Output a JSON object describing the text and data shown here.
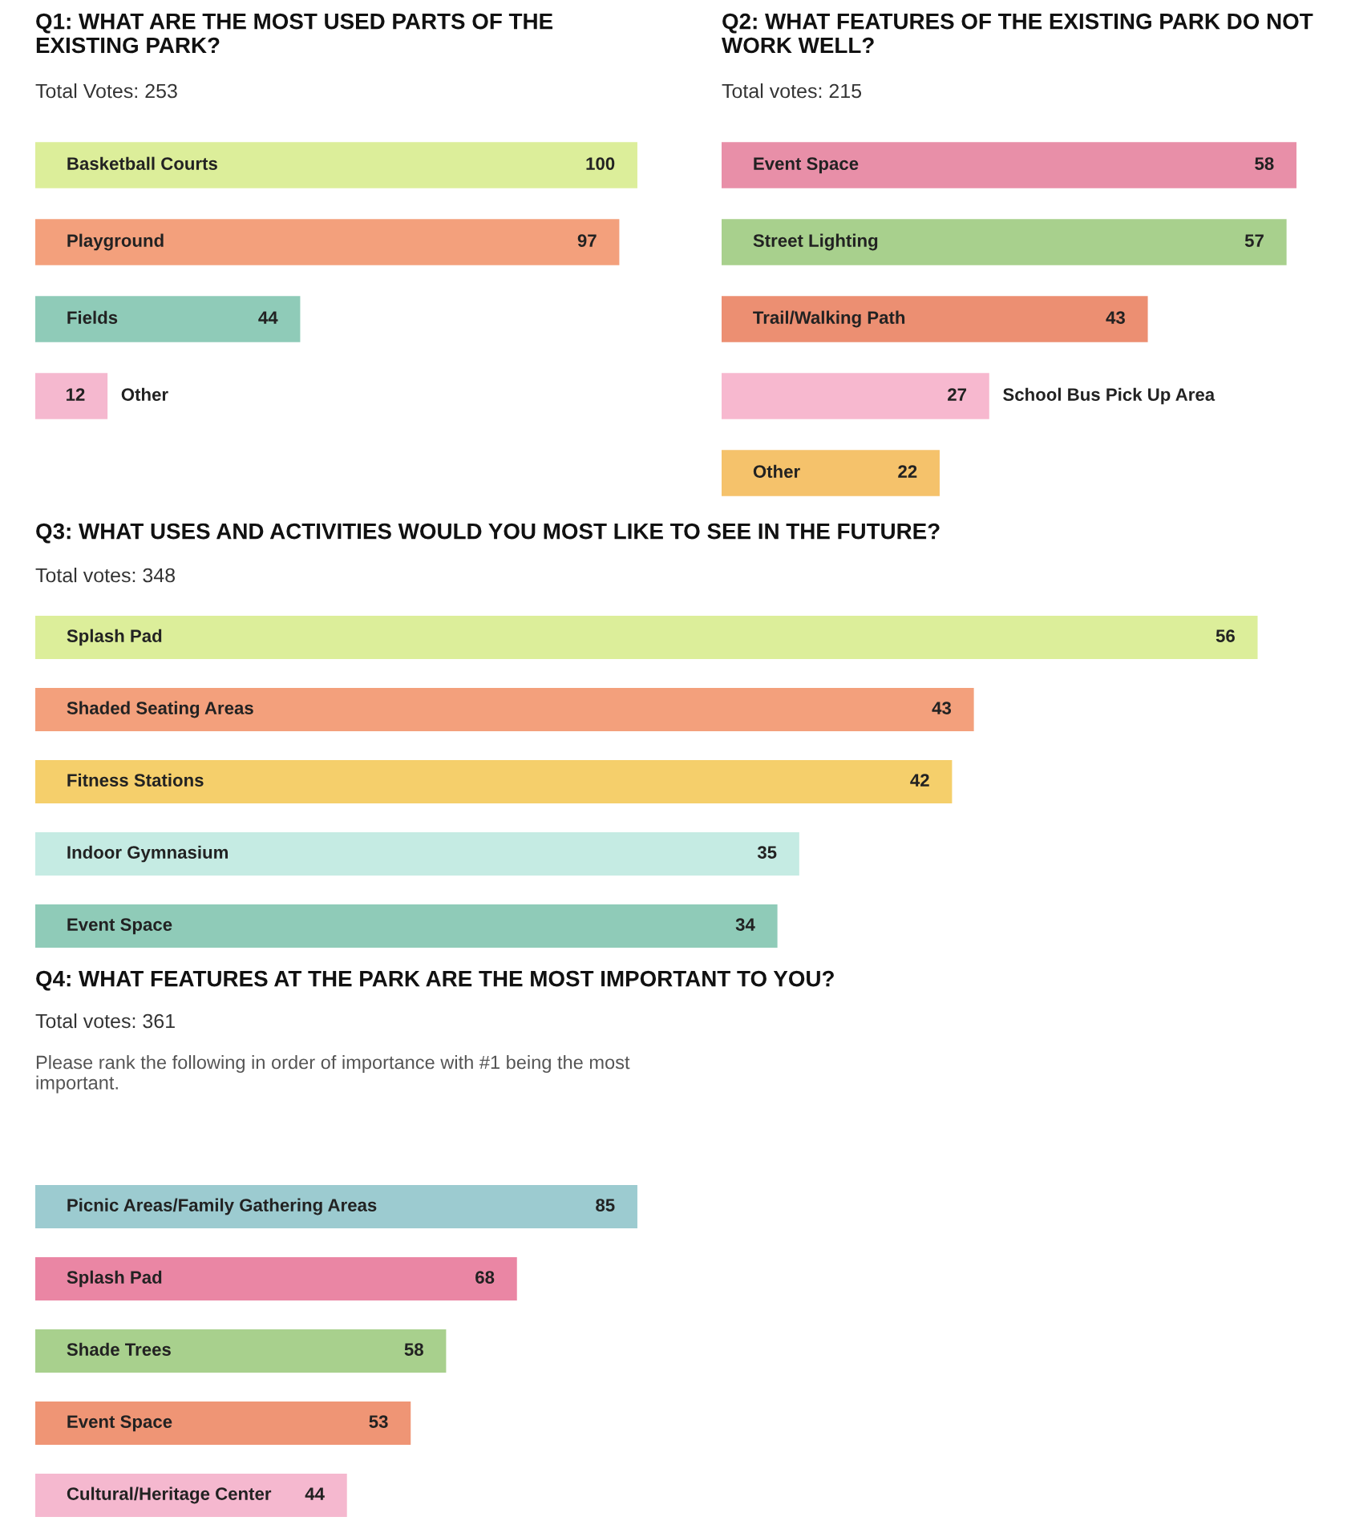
{
  "chart_data": [
    {
      "type": "bar",
      "orientation": "horizontal",
      "title": "Q1: WHAT ARE THE MOST USED PARTS OF THE EXISTING PARK?",
      "subtitle": "Total Votes: 253",
      "categories": [
        "Basketball Courts",
        "Playground",
        "Fields",
        "Other"
      ],
      "values": [
        100,
        97,
        44,
        12
      ],
      "colors": [
        "#dcee9a",
        "#f3a07c",
        "#8fcbb8",
        "#f5b8cf"
      ],
      "data_labels": true,
      "tick_labels": false
    },
    {
      "type": "bar",
      "orientation": "horizontal",
      "title": "Q2: WHAT FEATURES OF THE EXISTING PARK DO NOT WORK WELL?",
      "subtitle": "Total votes: 215",
      "categories": [
        "Event Space",
        "Street Lighting",
        "Trail/Walking Path",
        "School Bus Pick Up Area",
        "Other"
      ],
      "values": [
        58,
        57,
        43,
        27,
        22
      ],
      "colors": [
        "#e88fa8",
        "#a8d08d",
        "#ec8f72",
        "#f7b8cf",
        "#f5c26b"
      ],
      "data_labels": true,
      "tick_labels": false
    },
    {
      "type": "bar",
      "orientation": "horizontal",
      "title": "Q3: WHAT USES AND ACTIVITIES WOULD YOU MOST LIKE TO SEE IN THE FUTURE?",
      "subtitle": "Total votes: 348",
      "categories": [
        "Splash Pad",
        "Shaded Seating Areas",
        "Fitness Stations",
        "Indoor Gymnasium",
        "Event Space"
      ],
      "values": [
        56,
        43,
        42,
        35,
        34
      ],
      "colors": [
        "#dcee9a",
        "#f3a07c",
        "#f5cf6b",
        "#c5ebe3",
        "#8fcbb8"
      ],
      "data_labels": true,
      "tick_labels": false
    },
    {
      "type": "bar",
      "orientation": "horizontal",
      "title": "Q4: WHAT FEATURES AT THE PARK ARE THE MOST IMPORTANT TO YOU?",
      "subtitle": "Total votes: 361",
      "annotations": [
        "Please rank the following in order of importance with #1 being the most important."
      ],
      "categories": [
        "Picnic Areas/Family Gathering Areas",
        "Splash Pad",
        "Shade Trees",
        "Event Space",
        "Cultural/Heritage Center"
      ],
      "values": [
        85,
        68,
        58,
        53,
        44
      ],
      "colors": [
        "#9ccbd0",
        "#ea86a4",
        "#a8d08d",
        "#ef9575",
        "#f5b8cf"
      ],
      "data_labels": true,
      "tick_labels": false
    }
  ]
}
